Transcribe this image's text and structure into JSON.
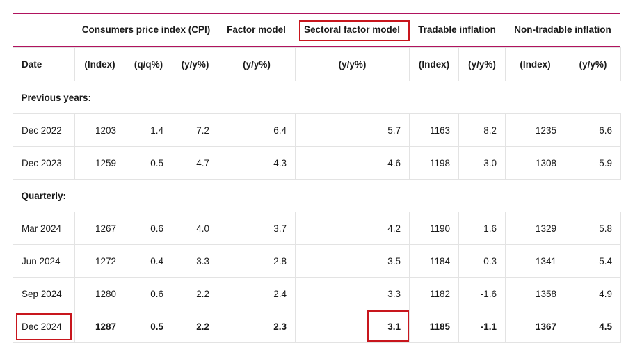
{
  "group_headers": {
    "cpi": "Consumers price index (CPI)",
    "factor_model": "Factor model",
    "sectoral_factor_model": "Sectoral factor model",
    "tradable": "Tradable inflation",
    "non_tradable": "Non-tradable inflation"
  },
  "units": [
    "Date",
    "(Index)",
    "(q/q%)",
    "(y/y%)",
    "(y/y%)",
    "(y/y%)",
    "(Index)",
    "(y/y%)",
    "(Index)",
    "(y/y%)"
  ],
  "sections": {
    "previous_years": "Previous years:",
    "quarterly": "Quarterly:"
  },
  "rows": {
    "dec2022": [
      "Dec 2022",
      "1203",
      "1.4",
      "7.2",
      "6.4",
      "5.7",
      "1163",
      "8.2",
      "1235",
      "6.6"
    ],
    "dec2023": [
      "Dec 2023",
      "1259",
      "0.5",
      "4.7",
      "4.3",
      "4.6",
      "1198",
      "3.0",
      "1308",
      "5.9"
    ],
    "mar2024": [
      "Mar 2024",
      "1267",
      "0.6",
      "4.0",
      "3.7",
      "4.2",
      "1190",
      "1.6",
      "1329",
      "5.8"
    ],
    "jun2024": [
      "Jun 2024",
      "1272",
      "0.4",
      "3.3",
      "2.8",
      "3.5",
      "1184",
      "0.3",
      "1341",
      "5.4"
    ],
    "sep2024": [
      "Sep 2024",
      "1280",
      "0.6",
      "2.2",
      "2.4",
      "3.3",
      "1182",
      "-1.6",
      "1358",
      "4.9"
    ],
    "dec2024": [
      "Dec 2024",
      "1287",
      "0.5",
      "2.2",
      "2.3",
      "3.1",
      "1185",
      "-1.1",
      "1367",
      "4.5"
    ]
  },
  "colors": {
    "rule": "#b0135e",
    "highlight": "#c8161d",
    "grid": "#e3e3e3"
  }
}
